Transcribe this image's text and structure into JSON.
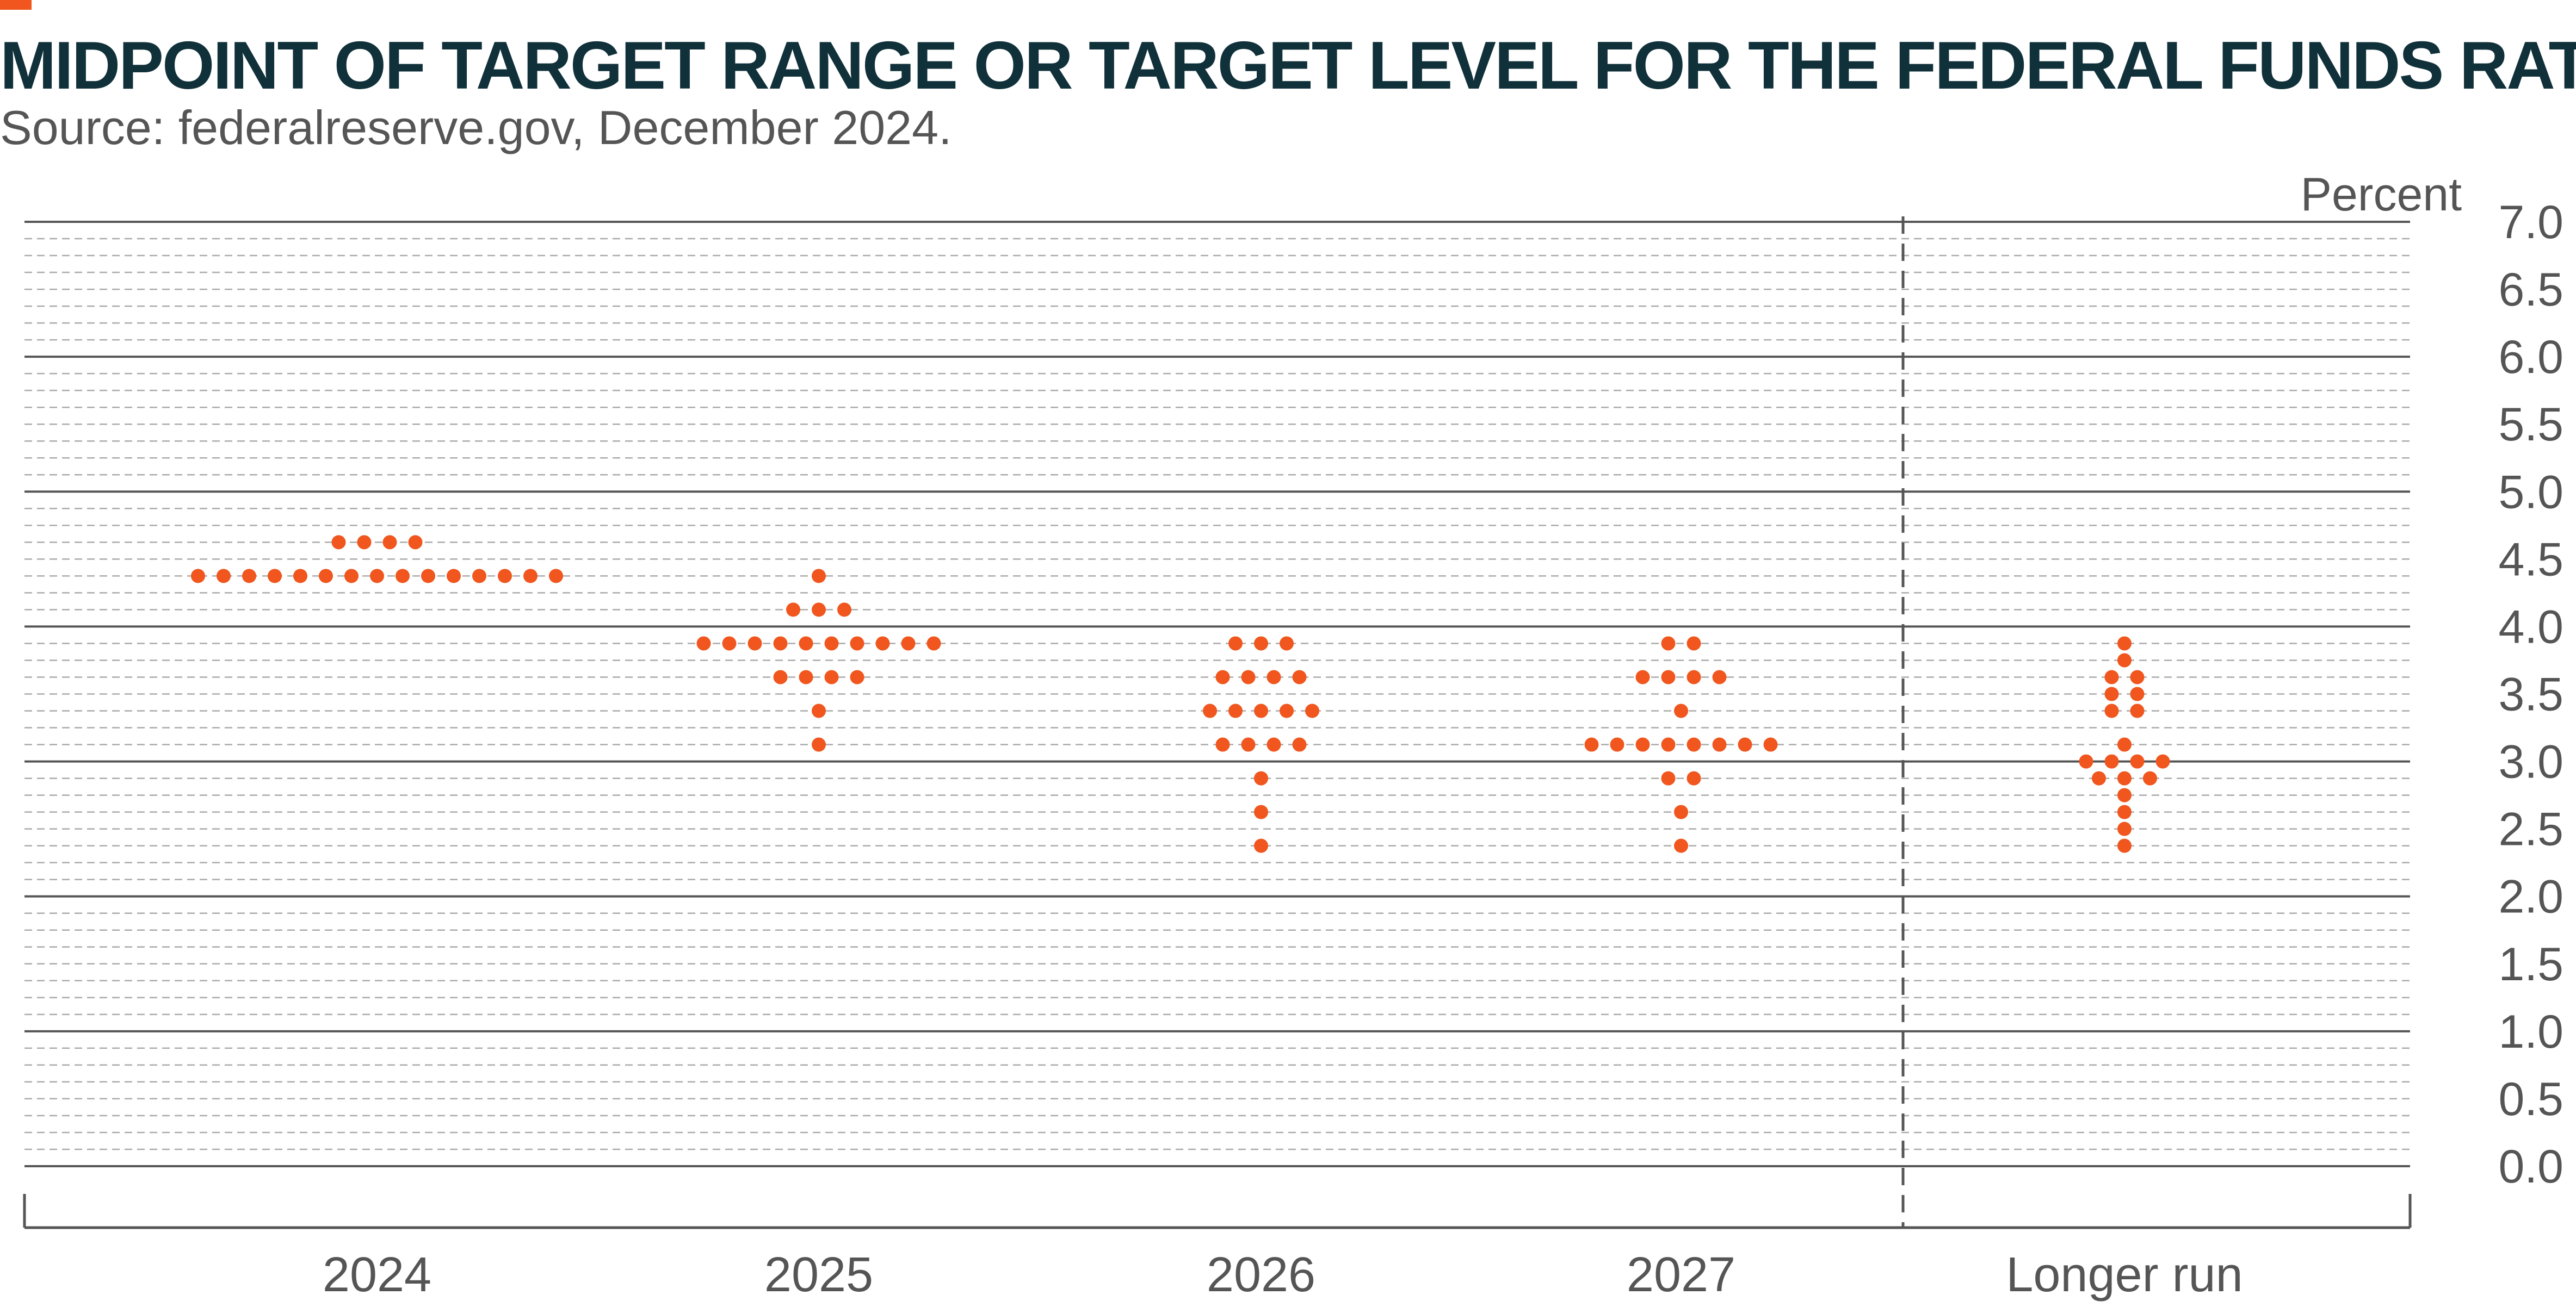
{
  "header": {
    "title": "MIDPOINT OF TARGET RANGE OR TARGET LEVEL FOR THE FEDERAL FUNDS RATE",
    "subtitle": "Source: federalreserve.gov, December 2024."
  },
  "colors": {
    "accent": "#f0561d",
    "dot": "#f0561d",
    "title": "#10303a",
    "text": "#555555",
    "grid_major": "#555555",
    "grid_minor": "#aaaaaa"
  },
  "chart_data": {
    "type": "scatter",
    "subtype": "dot-plot",
    "title": "MIDPOINT OF TARGET RANGE OR TARGET LEVEL FOR THE FEDERAL FUNDS RATE",
    "unit_label": "Percent",
    "y_axis_position": "right",
    "ylim": [
      0,
      7
    ],
    "y_ticks": [
      "7.0",
      "6.5",
      "6.0",
      "5.5",
      "5.0",
      "4.5",
      "4.0",
      "3.5",
      "3.0",
      "2.5",
      "2.0",
      "1.5",
      "1.0",
      "0.5",
      "0.0"
    ],
    "grid": true,
    "grid_minor_step": 0.125,
    "categories": [
      "2024",
      "2025",
      "2026",
      "2027",
      "Longer run"
    ],
    "divider_after_category": "2027",
    "dots": [
      {
        "category": "2024",
        "counts": [
          {
            "y": 4.625,
            "n": 4
          },
          {
            "y": 4.375,
            "n": 15
          }
        ]
      },
      {
        "category": "2025",
        "counts": [
          {
            "y": 4.375,
            "n": 1
          },
          {
            "y": 4.125,
            "n": 3
          },
          {
            "y": 3.875,
            "n": 10
          },
          {
            "y": 3.625,
            "n": 4
          },
          {
            "y": 3.375,
            "n": 1
          },
          {
            "y": 3.125,
            "n": 1
          }
        ]
      },
      {
        "category": "2026",
        "counts": [
          {
            "y": 3.875,
            "n": 3
          },
          {
            "y": 3.625,
            "n": 4
          },
          {
            "y": 3.375,
            "n": 5
          },
          {
            "y": 3.125,
            "n": 4
          },
          {
            "y": 2.875,
            "n": 1
          },
          {
            "y": 2.625,
            "n": 1
          },
          {
            "y": 2.375,
            "n": 1
          }
        ]
      },
      {
        "category": "2027",
        "counts": [
          {
            "y": 3.875,
            "n": 2
          },
          {
            "y": 3.625,
            "n": 4
          },
          {
            "y": 3.375,
            "n": 1
          },
          {
            "y": 3.125,
            "n": 8
          },
          {
            "y": 2.875,
            "n": 2
          },
          {
            "y": 2.625,
            "n": 1
          },
          {
            "y": 2.375,
            "n": 1
          }
        ]
      },
      {
        "category": "Longer run",
        "counts": [
          {
            "y": 3.875,
            "n": 1
          },
          {
            "y": 3.75,
            "n": 1
          },
          {
            "y": 3.625,
            "n": 2
          },
          {
            "y": 3.5,
            "n": 2
          },
          {
            "y": 3.375,
            "n": 2
          },
          {
            "y": 3.125,
            "n": 1
          },
          {
            "y": 3.0,
            "n": 4
          },
          {
            "y": 2.875,
            "n": 3
          },
          {
            "y": 2.75,
            "n": 1
          },
          {
            "y": 2.625,
            "n": 1
          },
          {
            "y": 2.5,
            "n": 1
          },
          {
            "y": 2.375,
            "n": 1
          }
        ]
      }
    ]
  }
}
